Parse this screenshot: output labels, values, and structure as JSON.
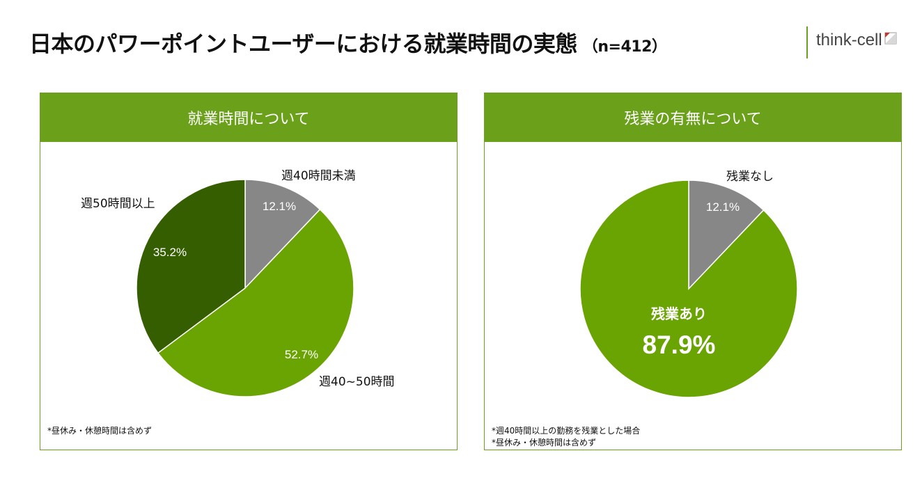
{
  "title": {
    "main": "日本のパワーポイントユーザーにおける就業時間の実態",
    "sample": "（n=412）"
  },
  "brand": {
    "name": "think-cell"
  },
  "colors": {
    "accent": "#6aa01a",
    "gray_slice": "#878787",
    "light_green_slice": "#6aa402",
    "dark_green_slice": "#355e00",
    "white": "#ffffff"
  },
  "chart_data": [
    {
      "type": "pie",
      "title": "就業時間について",
      "slices": [
        {
          "label": "週40時間未満",
          "value": 12.1,
          "value_label": "12.1%",
          "color": "#878787"
        },
        {
          "label": "週40~50時間",
          "value": 52.7,
          "value_label": "52.7%",
          "color": "#6aa402"
        },
        {
          "label": "週50時間以上",
          "value": 35.2,
          "value_label": "35.2%",
          "color": "#355e00"
        }
      ],
      "start_angle_deg": 0,
      "direction": "clockwise",
      "notes": [
        "*昼休み・休憩時間は含めず"
      ]
    },
    {
      "type": "pie",
      "title": "残業の有無について",
      "slices": [
        {
          "label": "残業なし",
          "value": 12.1,
          "value_label": "12.1%",
          "color": "#878787"
        },
        {
          "label": "残業あり",
          "value": 87.9,
          "value_label": "87.9%",
          "color": "#6aa402"
        }
      ],
      "start_angle_deg": 0,
      "direction": "clockwise",
      "notes": [
        "*週40時間以上の勤務を残業とした場合",
        "*昼休み・休憩時間は含めず"
      ]
    }
  ]
}
